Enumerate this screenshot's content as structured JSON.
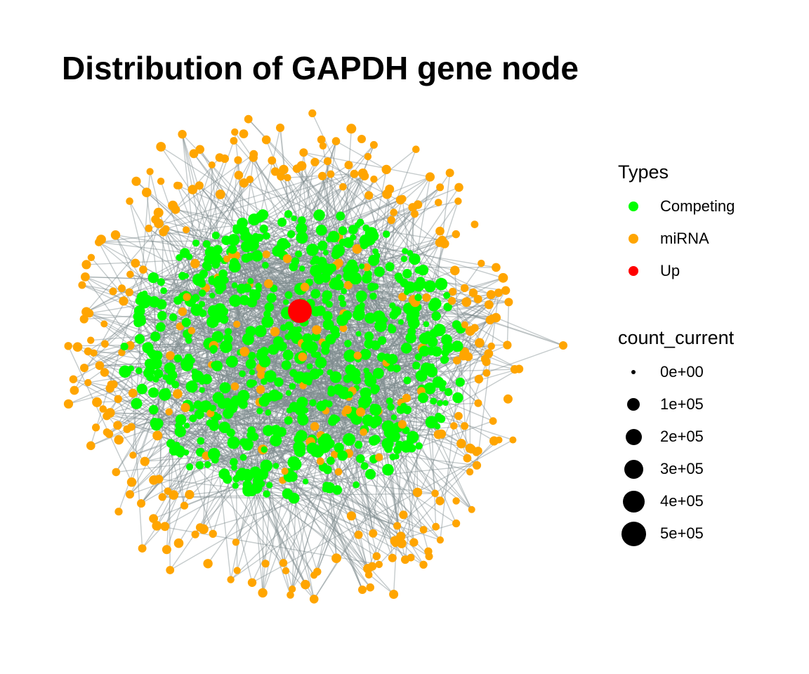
{
  "chart_data": {
    "type": "network",
    "title": "Distribution of GAPDH gene node",
    "legend_position": "right",
    "types_legend": {
      "title": "Types",
      "entries": [
        {
          "label": "Competing",
          "color": "#00ff00"
        },
        {
          "label": "miRNA",
          "color": "#ffa500"
        },
        {
          "label": "Up",
          "color": "#ff0000"
        }
      ]
    },
    "size_legend": {
      "title": "count_current",
      "entries": [
        {
          "label": "0e+00",
          "value": 0
        },
        {
          "label": "1e+05",
          "value": 100000
        },
        {
          "label": "2e+05",
          "value": 200000
        },
        {
          "label": "3e+05",
          "value": 300000
        },
        {
          "label": "4e+05",
          "value": 400000
        },
        {
          "label": "5e+05",
          "value": 500000
        }
      ]
    },
    "edge_color": "#7f8c8d",
    "highlighted_node": {
      "type": "Up",
      "color": "#ff0000"
    }
  }
}
